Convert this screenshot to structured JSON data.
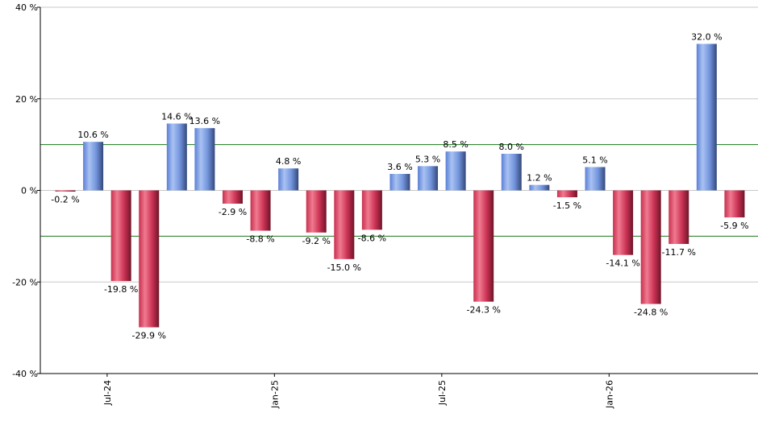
{
  "chart_data": {
    "type": "bar",
    "title": "",
    "xlabel": "",
    "ylabel": "",
    "ylim": [
      -40,
      40
    ],
    "y_ticks": [
      -40,
      -20,
      0,
      20,
      40
    ],
    "y_tick_labels": [
      "-40 %",
      "-20 %",
      "0 %",
      "20 %",
      "40 %"
    ],
    "reference_lines": [
      10,
      -10
    ],
    "grid": true,
    "x_tick_labels": [
      {
        "label": "Jul-24",
        "after_index": 1
      },
      {
        "label": "Jan-25",
        "after_index": 7
      },
      {
        "label": "Jul-25",
        "after_index": 13
      },
      {
        "label": "Jan-26",
        "after_index": 19
      }
    ],
    "values": [
      -0.2,
      10.6,
      -19.8,
      -29.9,
      14.6,
      13.6,
      -2.9,
      -8.8,
      4.8,
      -9.2,
      -15.0,
      -8.6,
      3.6,
      5.3,
      8.5,
      -24.3,
      8.0,
      1.2,
      -1.5,
      5.1,
      -14.1,
      -24.8,
      -11.7,
      32.0,
      -5.9
    ],
    "data_labels": [
      "-0.2 %",
      "10.6 %",
      "-19.8 %",
      "-29.9 %",
      "14.6 %",
      "13.6 %",
      "-2.9 %",
      "-8.8 %",
      "4.8 %",
      "-9.2 %",
      "-15.0 %",
      "-8.6 %",
      "3.6 %",
      "5.3 %",
      "8.5 %",
      "-24.3 %",
      "8.0 %",
      "1.2 %",
      "-1.5 %",
      "5.1 %",
      "-14.1 %",
      "-24.8 %",
      "-11.7 %",
      "32.0 %",
      "-5.9 %"
    ],
    "colors": {
      "positive": "#7c9ee0",
      "negative": "#cc3355",
      "reference_line": "#1a7a1a",
      "grid": "#c8c8c8",
      "axis": "#000000"
    }
  }
}
